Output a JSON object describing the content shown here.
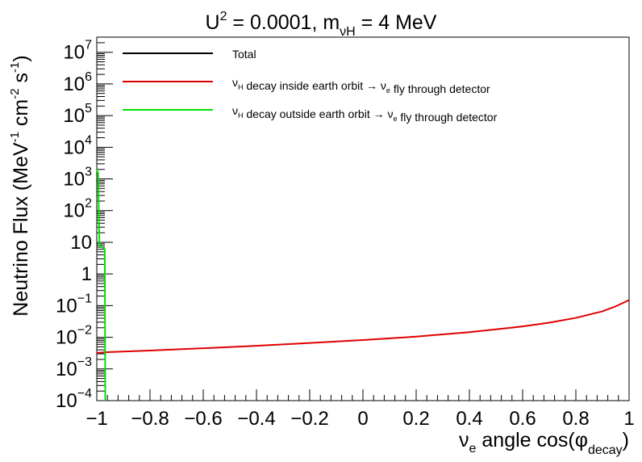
{
  "chart_data": {
    "type": "line",
    "title": {
      "prefix": "U",
      "power": "2",
      "middle": " = 0.0001, m",
      "sub": "νH",
      "suffix": " = 4 MeV"
    },
    "xlabel": {
      "prefix": "ν",
      "prefix_sub": "e",
      "middle": " angle cos(φ",
      "sub": "decay",
      "suffix": ")"
    },
    "ylabel": {
      "p1": "Neutrino Flux (MeV",
      "sup1": "-1",
      "p2": " cm",
      "sup2": "-2",
      "p3": " s",
      "sup3": "-1",
      "p4": ")"
    },
    "xlim": [
      -1,
      1
    ],
    "ylim": [
      0.0001,
      30000000
    ],
    "yscale": "log",
    "grid": false,
    "legend_position": "top",
    "x_ticks": [
      -1,
      -0.8,
      -0.6,
      -0.4,
      -0.2,
      0,
      0.2,
      0.4,
      0.6,
      0.8,
      1
    ],
    "x_tick_labels": [
      "−1",
      "−0.8",
      "−0.6",
      "−0.4",
      "−0.2",
      "0",
      "0.2",
      "0.4",
      "0.6",
      "0.8",
      "1"
    ],
    "y_tick_labels": [
      {
        "value": 0.0001,
        "base": "10",
        "exp": "−4"
      },
      {
        "value": 0.001,
        "base": "10",
        "exp": "−3"
      },
      {
        "value": 0.01,
        "base": "10",
        "exp": "−2"
      },
      {
        "value": 0.1,
        "base": "10",
        "exp": "−1"
      },
      {
        "value": 1,
        "base": "1",
        "exp": ""
      },
      {
        "value": 10,
        "base": "10",
        "exp": ""
      },
      {
        "value": 100,
        "base": "10",
        "exp": "2"
      },
      {
        "value": 1000,
        "base": "10",
        "exp": "3"
      },
      {
        "value": 10000,
        "base": "10",
        "exp": "4"
      },
      {
        "value": 100000,
        "base": "10",
        "exp": "5"
      },
      {
        "value": 1000000,
        "base": "10",
        "exp": "6"
      },
      {
        "value": 10000000,
        "base": "10",
        "exp": "7"
      }
    ],
    "series": [
      {
        "name": "Total",
        "color": "#000000",
        "legend": {
          "parts": [
            {
              "t": "Total",
              "k": "n"
            }
          ]
        },
        "points": []
      },
      {
        "name": "νH decay inside earth orbit → νe fly through detector",
        "color": "#e00000",
        "legend": {
          "parts": [
            {
              "t": "ν",
              "k": "n"
            },
            {
              "t": "H",
              "k": "sub"
            },
            {
              "t": " decay inside earth orbit → ν",
              "k": "n"
            },
            {
              "t": "e",
              "k": "sub"
            },
            {
              "t": " fly through detector",
              "k": "n"
            }
          ]
        },
        "points": [
          [
            -1.0,
            0.0032
          ],
          [
            -0.96,
            0.0034
          ],
          [
            -0.8,
            0.0038
          ],
          [
            -0.6,
            0.0045
          ],
          [
            -0.4,
            0.0054
          ],
          [
            -0.2,
            0.0066
          ],
          [
            0.0,
            0.0082
          ],
          [
            0.2,
            0.0105
          ],
          [
            0.4,
            0.0145
          ],
          [
            0.6,
            0.022
          ],
          [
            0.7,
            0.029
          ],
          [
            0.8,
            0.041
          ],
          [
            0.9,
            0.066
          ],
          [
            0.95,
            0.095
          ],
          [
            1.0,
            0.15
          ]
        ]
      },
      {
        "name": "νH decay outside earth orbit → νe fly through detector",
        "color": "#00e000",
        "legend": {
          "parts": [
            {
              "t": "ν",
              "k": "n"
            },
            {
              "t": "H",
              "k": "sub"
            },
            {
              "t": " decay outside earth orbit → ν",
              "k": "n"
            },
            {
              "t": "e",
              "k": "sub"
            },
            {
              "t": " fly through detector",
              "k": "n"
            }
          ]
        },
        "points": [
          [
            -1.0,
            2000
          ],
          [
            -0.995,
            1500
          ],
          [
            -0.99,
            8
          ],
          [
            -0.97,
            6
          ],
          [
            -0.968,
            0.0001
          ]
        ]
      }
    ]
  }
}
